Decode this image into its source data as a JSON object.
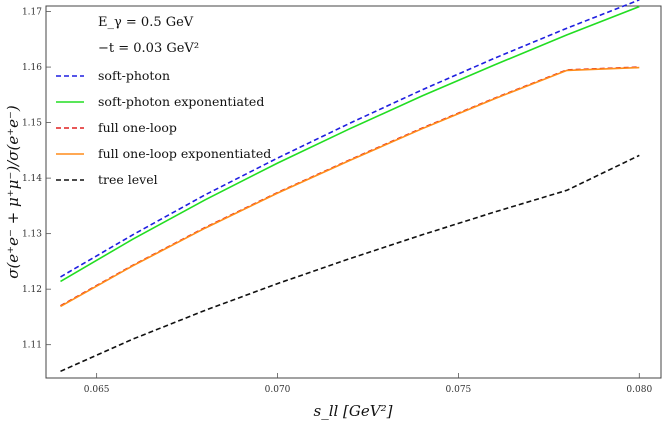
{
  "chart_data": {
    "type": "line",
    "xlabel": "s_ll [GeV²]",
    "ylabel": "σ(e⁺e⁻ + μ⁺μ⁻)/σ(e⁺e⁻)",
    "xlim": [
      0.0636,
      0.0806
    ],
    "ylim": [
      1.104,
      1.171
    ],
    "x_ticks": [
      0.065,
      0.07,
      0.075,
      0.08
    ],
    "x_tick_labels": [
      "0.065",
      "0.070",
      "0.075",
      "0.080"
    ],
    "y_ticks": [
      1.11,
      1.12,
      1.13,
      1.14,
      1.15,
      1.16,
      1.17
    ],
    "y_tick_labels": [
      "1.11",
      "1.12",
      "1.13",
      "1.14",
      "1.15",
      "1.16",
      "1.17"
    ],
    "annotations": [
      "E_γ = 0.5 GeV",
      "−t = 0.03 GeV²"
    ],
    "legend_position": "top-left",
    "grid": false,
    "series": [
      {
        "name": "soft-photon",
        "color": "#1f1fe0",
        "style": "dashed",
        "x": [
          0.064,
          0.066,
          0.068,
          0.07,
          0.072,
          0.074,
          0.076,
          0.078,
          0.08
        ],
        "values": [
          1.1222,
          1.1298,
          1.137,
          1.1436,
          1.1499,
          1.1559,
          1.1616,
          1.167,
          1.1721
        ]
      },
      {
        "name": "soft-photon exponentiated",
        "color": "#22dd22",
        "style": "solid",
        "x": [
          0.064,
          0.066,
          0.068,
          0.07,
          0.072,
          0.074,
          0.076,
          0.078,
          0.08
        ],
        "values": [
          1.1214,
          1.129,
          1.1361,
          1.1427,
          1.1489,
          1.1548,
          1.1604,
          1.1658,
          1.1709
        ]
      },
      {
        "name": "full one-loop",
        "color": "#e02020",
        "style": "dashed",
        "x": [
          0.064,
          0.066,
          0.068,
          0.07,
          0.072,
          0.074,
          0.076,
          0.078,
          0.08
        ],
        "values": [
          1.117,
          1.1243,
          1.1311,
          1.1374,
          1.1433,
          1.149,
          1.1544,
          1.1595,
          1.16
        ]
      },
      {
        "name": "full one-loop exponentiated",
        "color": "#ff8c1a",
        "style": "solid",
        "x": [
          0.064,
          0.066,
          0.068,
          0.07,
          0.072,
          0.074,
          0.076,
          0.078,
          0.08
        ],
        "values": [
          1.1169,
          1.1242,
          1.131,
          1.1373,
          1.1432,
          1.1489,
          1.1543,
          1.1594,
          1.1599
        ]
      },
      {
        "name": "tree level",
        "color": "#111111",
        "style": "dashed",
        "x": [
          0.064,
          0.066,
          0.068,
          0.07,
          0.072,
          0.074,
          0.076,
          0.078,
          0.08
        ],
        "values": [
          1.1052,
          1.111,
          1.1162,
          1.121,
          1.1255,
          1.1298,
          1.1339,
          1.1378,
          1.1441
        ]
      }
    ]
  }
}
